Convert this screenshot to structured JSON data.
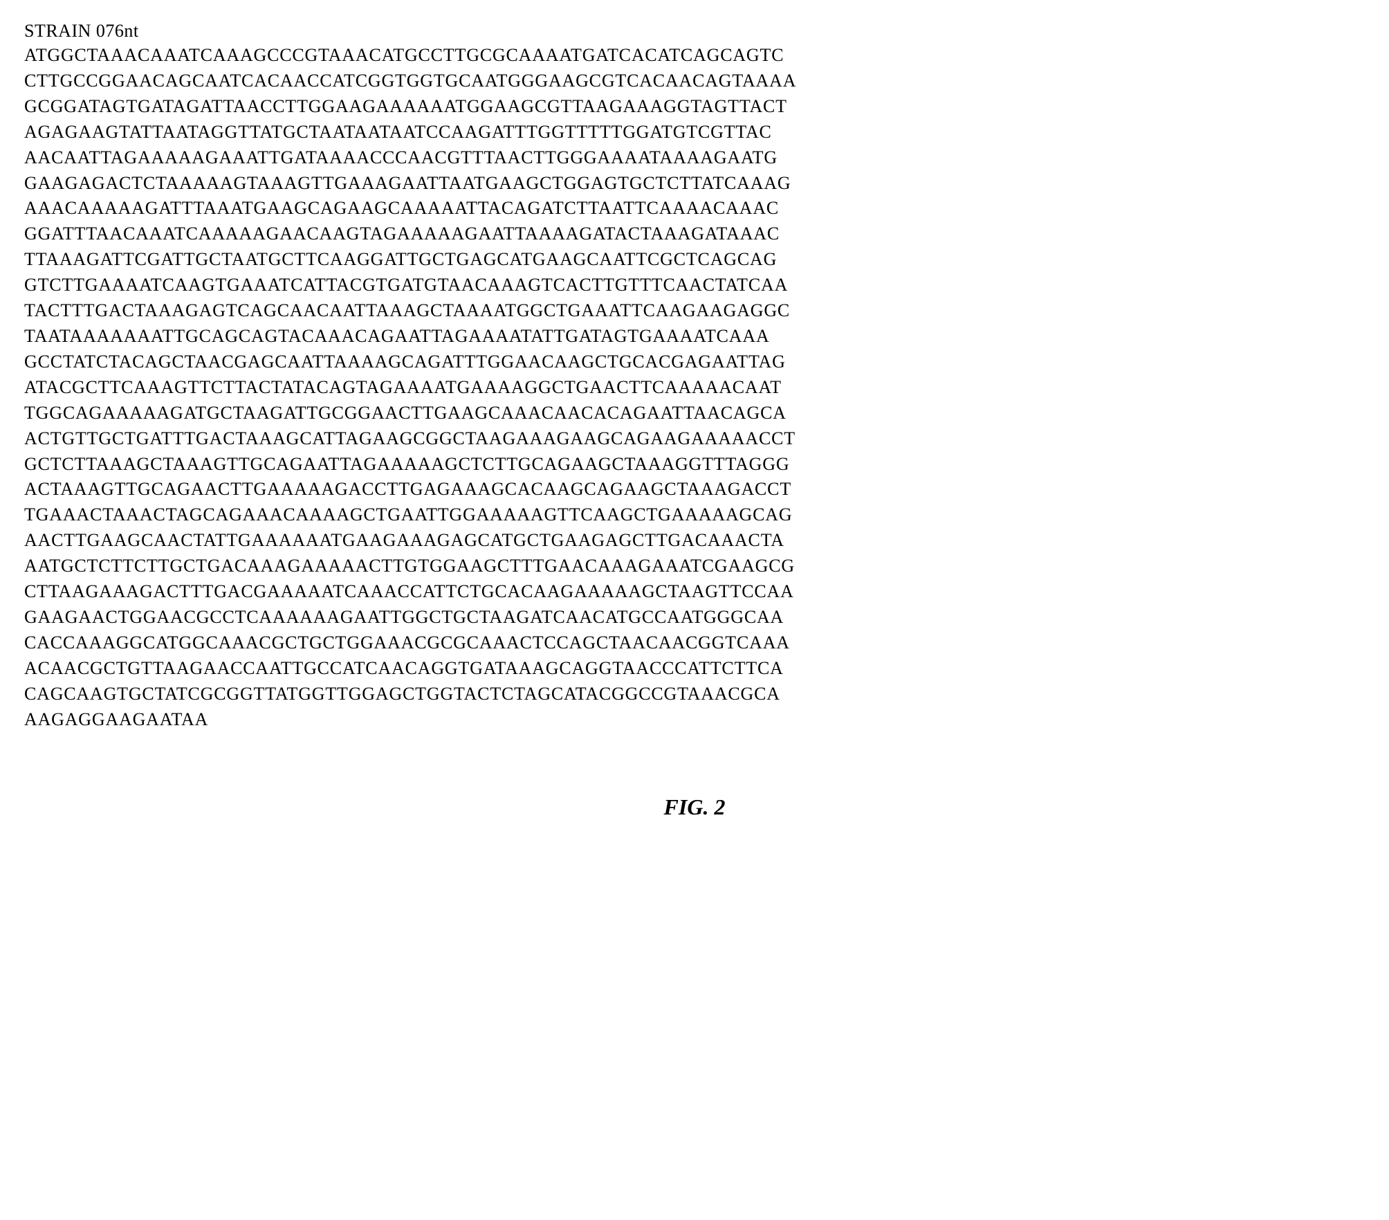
{
  "strain_label": "STRAIN 076nt",
  "sequence_lines": [
    "ATGGCTAAACAAATCAAAGCCCGTAAACATGCCTTGCGCAAAATGATCACATCAGCAGTC",
    "CTTGCCGGAACAGCAATCACAACCATCGGTGGTGCAATGGGAAGCGTCACAACAGTAAAA",
    "GCGGATAGTGATAGATTAACCTTGGAAGAAAAAATGGAAGCGTTAAGAAAGGTAGTTACT",
    "AGAGAAGTATTAATAGGTTATGCTAATAATAATCCAAGATTTGGTTTTTGGATGTCGTTAC",
    "AACAATTAGAAAAAGAAATTGATAAAACCCAACGTTTAACTTGGGAAAATAAAAGAATG",
    "GAAGAGACTCTAAAAAGTAAAGTTGAAAGAATTAATGAAGCTGGAGTGCTCTTATCAAAG",
    "AAACAAAAAGATTTAAATGAAGCAGAAGCAAAAATTACAGATCTTAATTCAAAACAAAC",
    "GGATTTAACAAATCAAAAAGAACAAGTAGAAAAAGAATTAAAAGATACTAAAGATAAAC",
    "TTAAAGATTCGATTGCTAATGCTTCAAGGATTGCTGAGCATGAAGCAATTCGCTCAGCAG",
    "GTCTTGAAAATCAAGTGAAATCATTACGTGATGTAACAAAGTCACTTGTTTCAACTATCAA",
    "TACTTTGACTAAAGAGTCAGCAACAATTAAAGCTAAAATGGCTGAAATTCAAGAAGAGGC",
    "TAATAAAAAAATTGCAGCAGTACAAACAGAATTAGAAAATATTGATAGTGAAAATCAAA",
    "GCCTATCTACAGCTAACGAGCAATTAAAAGCAGATTTGGAACAAGCTGCACGAGAATTAG",
    "ATACGCTTCAAAGTTCTTACTATACAGTAGAAAATGAAAAGGCTGAACTTCAAAAACAAT",
    "TGGCAGAAAAAGATGCTAAGATTGCGGAACTTGAAGCAAACAACACAGAATTAACAGCA",
    "ACTGTTGCTGATTTGACTAAAGCATTAGAAGCGGCTAAGAAAGAAGCAGAAGAAAAACCT",
    "GCTCTTAAAGCTAAAGTTGCAGAATTAGAAAAAGCTCTTGCAGAAGCTAAAGGTTTAGGG",
    "ACTAAAGTTGCAGAACTTGAAAAAGACCTTGAGAAAGCACAAGCAGAAGCTAAAGACCT",
    "TGAAACTAAACTAGCAGAAACAAAAGCTGAATTGGAAAAAGTTCAAGCTGAAAAAGCAG",
    "AACTTGAAGCAACTATTGAAAAAATGAAGAAAGAGCATGCTGAAGAGCTTGACAAACTA",
    "AATGCTCTTCTTGCTGACAAAGAAAAACTTGTGGAAGCTTTGAACAAAGAAATCGAAGCG",
    "CTTAAGAAAGACTTTGACGAAAAATCAAACCATTCTGCACAAGAAAAAGCTAAGTTCCAA",
    "GAAGAACTGGAACGCCTCAAAAAAGAATTGGCTGCTAAGATCAACATGCCAATGGGCAA",
    "CACCAAAGGCATGGCAAACGCTGCTGGAAACGCGCAAACTCCAGCTAACAACGGTCAAA",
    "ACAACGCTGTTAAGAACCAATTGCCATCAACAGGTGATAAAGCAGGTAACCCATTCTTCA",
    "CAGCAAGTGCTATCGCGGTTATGGTTGGAGCTGGTACTCTAGCATACGGCCGTAAACGCA",
    "AAGAGGAAGAATAA"
  ],
  "figure_label": "FIG. 2",
  "styles": {
    "background_color": "#ffffff",
    "text_color": "#000000",
    "font_family": "Times New Roman",
    "sequence_fontsize": 26,
    "label_fontsize": 26,
    "figure_fontsize": 32,
    "line_height": 1.42,
    "letter_spacing": 0.8
  }
}
